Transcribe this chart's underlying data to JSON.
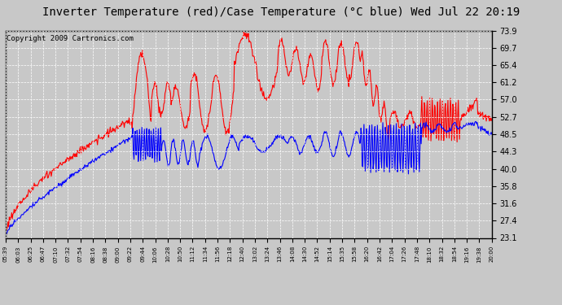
{
  "title": "Inverter Temperature (red)/Case Temperature (°C blue) Wed Jul 22 20:19",
  "copyright": "Copyright 2009 Cartronics.com",
  "yticks": [
    23.1,
    27.4,
    31.6,
    35.8,
    40.0,
    44.3,
    48.5,
    52.7,
    57.0,
    61.2,
    65.4,
    69.7,
    73.9
  ],
  "ymin": 23.1,
  "ymax": 73.9,
  "xtick_labels": [
    "05:39",
    "06:03",
    "06:25",
    "06:47",
    "07:10",
    "07:32",
    "07:54",
    "08:16",
    "08:38",
    "09:00",
    "09:22",
    "09:44",
    "10:06",
    "10:28",
    "10:50",
    "11:12",
    "11:34",
    "11:56",
    "12:18",
    "12:40",
    "13:02",
    "13:24",
    "13:46",
    "14:08",
    "14:30",
    "14:52",
    "15:14",
    "15:35",
    "15:58",
    "16:20",
    "16:42",
    "17:04",
    "17:26",
    "17:48",
    "18:10",
    "18:32",
    "18:54",
    "19:16",
    "19:38",
    "20:00"
  ],
  "bg_color": "#c8c8c8",
  "plot_bg_color": "#c8c8c8",
  "grid_color": "#ffffff",
  "red_color": "#ff0000",
  "blue_color": "#0000ff",
  "title_font_size": 10,
  "copyright_font_size": 6.5
}
